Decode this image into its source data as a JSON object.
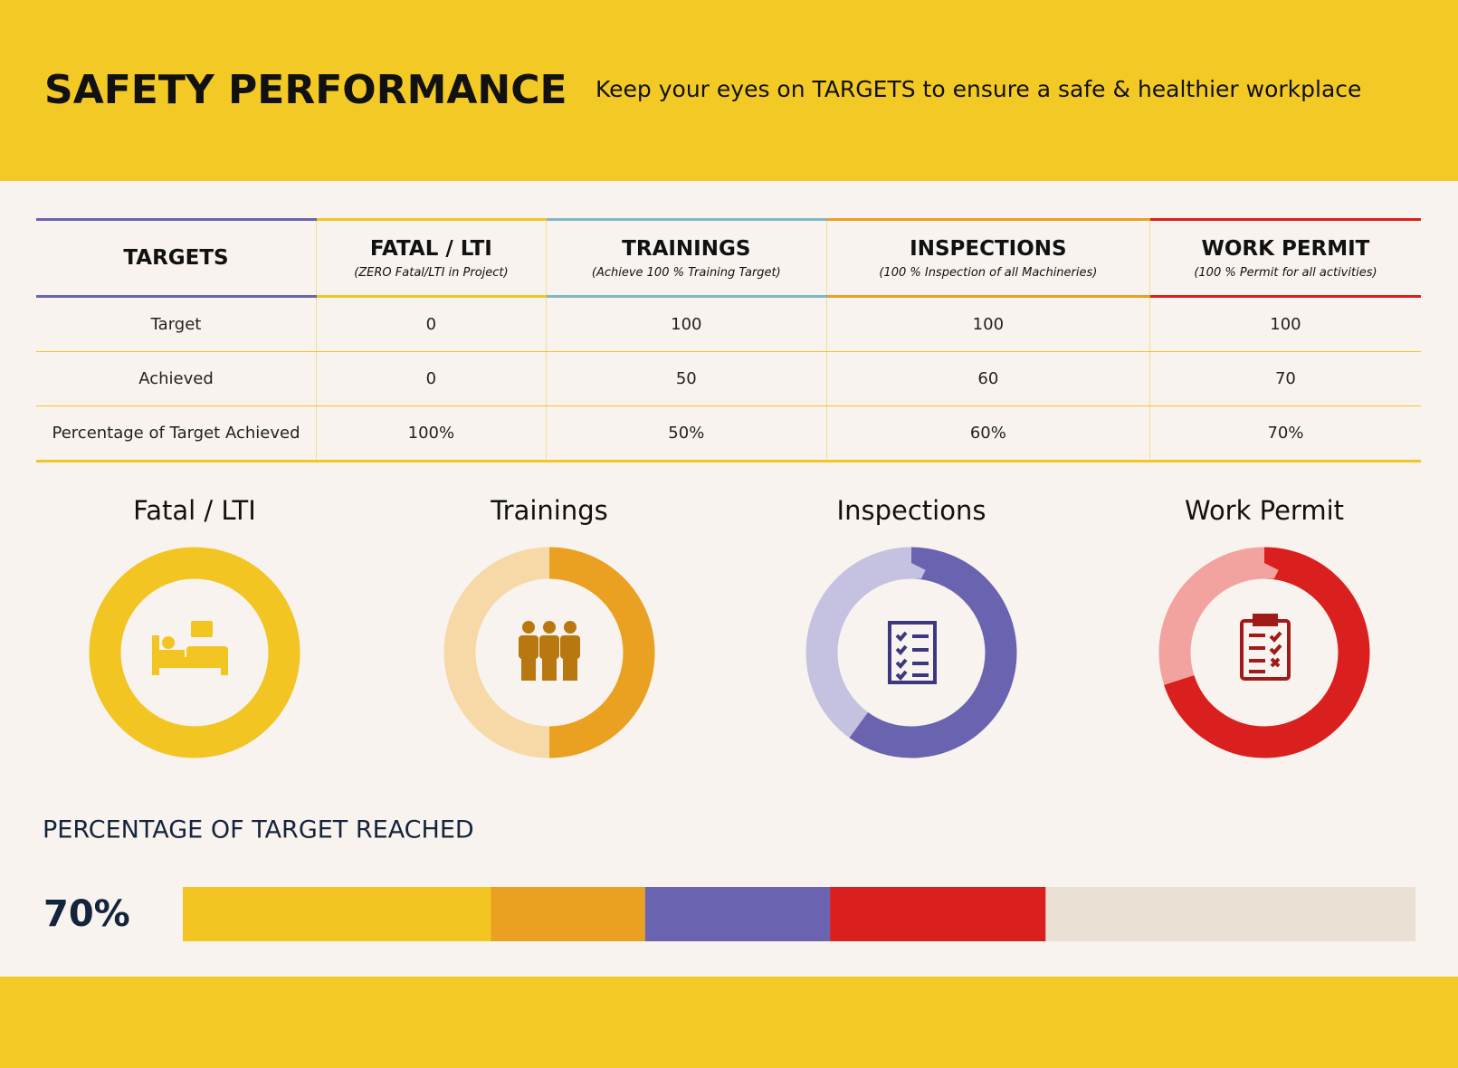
{
  "header": {
    "title": "SAFETY PERFORMANCE",
    "subtitle": "Keep your eyes on TARGETS to ensure a safe & healthier workplace"
  },
  "table": {
    "columns": [
      {
        "title": "TARGETS",
        "color": "#6a64b0"
      },
      {
        "title": "FATAL / LTI",
        "subtitle": "(ZERO Fatal/LTI in Project)",
        "color": "#f2c523"
      },
      {
        "title": "TRAININGS",
        "subtitle": "(Achieve 100 % Training Target)",
        "color": "#7fb8c4"
      },
      {
        "title": "INSPECTIONS",
        "subtitle": "(100 % Inspection of all Machineries)",
        "color": "#eaa020"
      },
      {
        "title": "WORK PERMIT",
        "subtitle": "(100 % Permit for all activities)",
        "color": "#d9201e"
      }
    ],
    "rows": [
      [
        "Target",
        0,
        100,
        100,
        100
      ],
      [
        "Achieved",
        0,
        50,
        60,
        70
      ],
      [
        "Percentage of Target Achieved",
        "100%",
        "50%",
        "60%",
        "70%"
      ]
    ]
  },
  "chart_data": [
    {
      "type": "pie",
      "title": "Fatal / LTI",
      "values": [
        100,
        0
      ],
      "colors": [
        "#f2c523",
        "#f7df8a"
      ]
    },
    {
      "type": "pie",
      "title": "Trainings",
      "values": [
        50,
        50
      ],
      "colors": [
        "#eaa020",
        "#f6d9a6"
      ]
    },
    {
      "type": "pie",
      "title": "Inspections",
      "values": [
        60,
        40
      ],
      "colors": [
        "#6a64b0",
        "#c4c2e0"
      ]
    },
    {
      "type": "pie",
      "title": "Work Permit",
      "values": [
        70,
        30
      ],
      "colors": [
        "#d9201e",
        "#f2a3a0"
      ]
    },
    {
      "type": "stacked-bar",
      "title": "PERCENTAGE OF TARGET REACHED",
      "headline": "70%",
      "xlim": [
        0,
        100
      ],
      "series": [
        {
          "color": "#f2c523",
          "values": [
            25
          ]
        },
        {
          "color": "#eaa020",
          "values": [
            12.5
          ]
        },
        {
          "color": "#6a64b0",
          "values": [
            15
          ]
        },
        {
          "color": "#d9201e",
          "values": [
            17.5
          ]
        },
        {
          "color": "#ebe0d4",
          "values": [
            30
          ]
        }
      ]
    }
  ]
}
